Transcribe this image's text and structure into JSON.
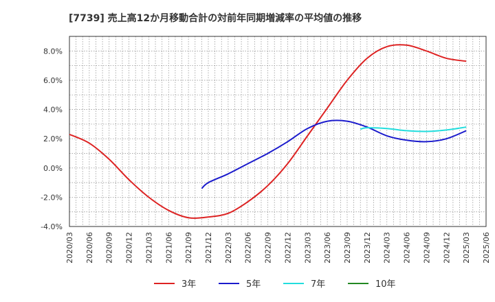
{
  "chart_data": {
    "type": "line",
    "title": "[7739]  売上高12か月移動合計の対前年同期増減率の平均値の推移",
    "xlabel": "",
    "ylabel": "",
    "ylim": [
      -4.0,
      9.0
    ],
    "y_ticks": [
      "-4.0%",
      "-2.0%",
      "0.0%",
      "2.0%",
      "4.0%",
      "6.0%",
      "8.0%"
    ],
    "x_ticks": [
      "2020/03",
      "2020/06",
      "2020/09",
      "2020/12",
      "2021/03",
      "2021/06",
      "2021/09",
      "2021/12",
      "2022/03",
      "2022/06",
      "2022/09",
      "2022/12",
      "2023/03",
      "2023/06",
      "2023/09",
      "2023/12",
      "2024/03",
      "2024/06",
      "2024/09",
      "2024/12",
      "2025/03",
      "2025/06"
    ],
    "grid": true,
    "legend_position": "bottom",
    "series": [
      {
        "name": "3年",
        "color": "#dd2222",
        "x": [
          "2020/03",
          "2020/06",
          "2020/09",
          "2020/12",
          "2021/03",
          "2021/06",
          "2021/09",
          "2021/12",
          "2022/03",
          "2022/06",
          "2022/09",
          "2022/12",
          "2023/03",
          "2023/06",
          "2023/09",
          "2023/12",
          "2024/03",
          "2024/06",
          "2024/09",
          "2024/12",
          "2025/03"
        ],
        "values": [
          2.3,
          1.7,
          0.6,
          -0.8,
          -2.0,
          -2.9,
          -3.4,
          -3.35,
          -3.1,
          -2.3,
          -1.2,
          0.3,
          2.2,
          4.1,
          6.0,
          7.5,
          8.3,
          8.4,
          8.0,
          7.5,
          7.3
        ]
      },
      {
        "name": "5年",
        "color": "#1a1acc",
        "x": [
          "2021/11",
          "2021/12",
          "2022/03",
          "2022/06",
          "2022/09",
          "2022/12",
          "2023/03",
          "2023/06",
          "2023/09",
          "2023/12",
          "2024/03",
          "2024/06",
          "2024/09",
          "2024/12",
          "2025/03"
        ],
        "values": [
          -1.4,
          -1.0,
          -0.4,
          0.3,
          1.0,
          1.8,
          2.7,
          3.2,
          3.2,
          2.8,
          2.2,
          1.9,
          1.8,
          2.0,
          2.55
        ]
      },
      {
        "name": "7年",
        "color": "#22dddd",
        "x": [
          "2023/11",
          "2023/12",
          "2024/03",
          "2024/06",
          "2024/09",
          "2024/12",
          "2025/03"
        ],
        "values": [
          2.65,
          2.75,
          2.7,
          2.55,
          2.5,
          2.6,
          2.8
        ]
      },
      {
        "name": "10年",
        "color": "#228822",
        "x": [],
        "values": []
      }
    ]
  }
}
